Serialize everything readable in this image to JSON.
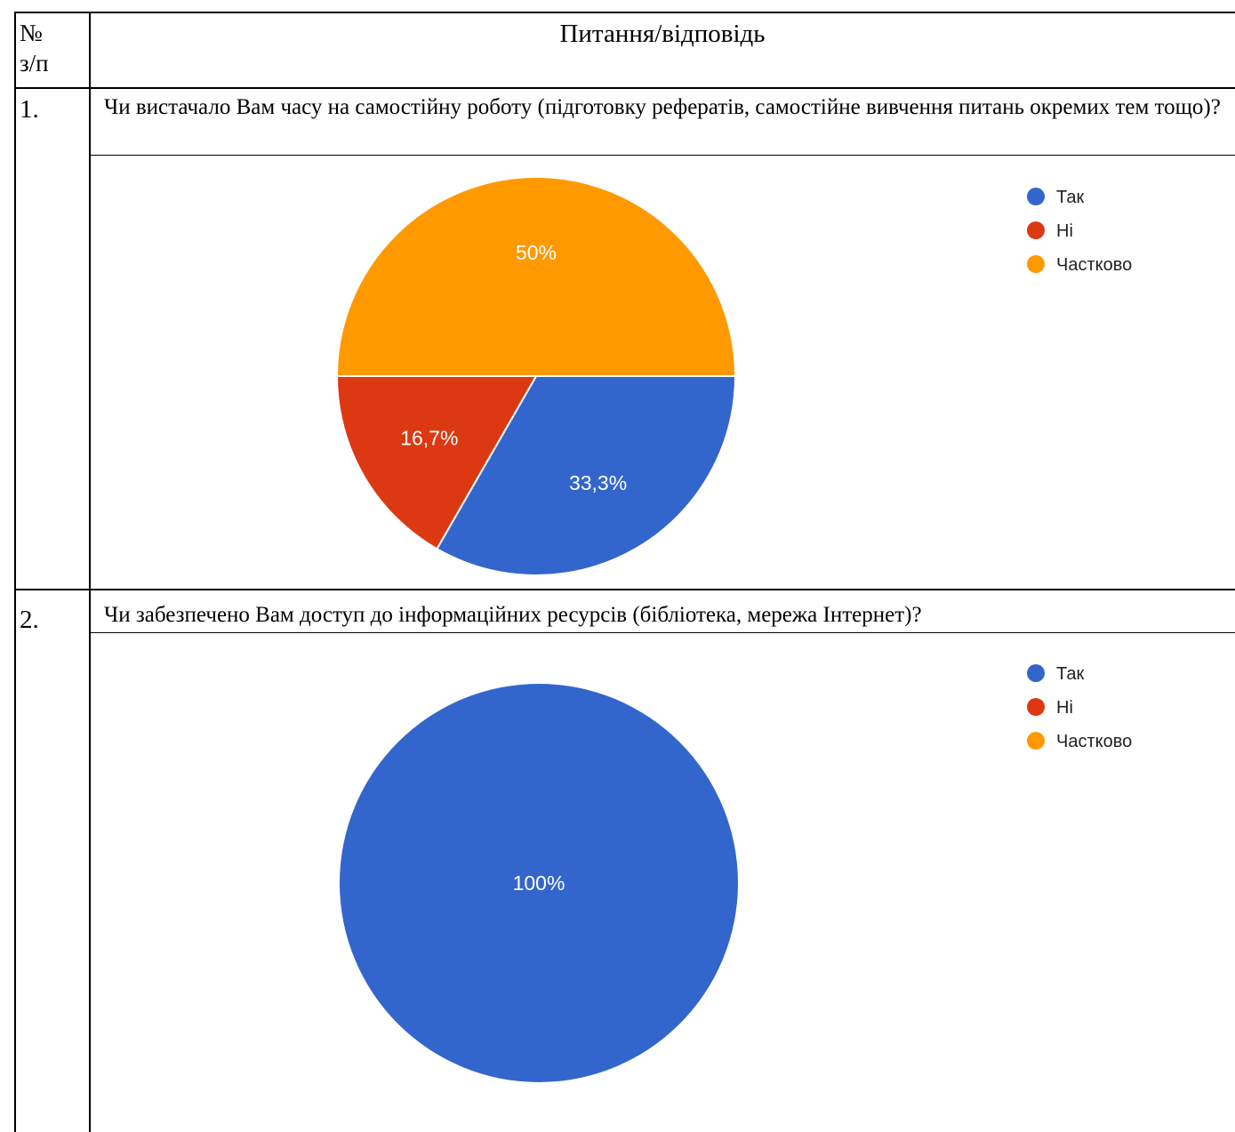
{
  "header": {
    "num_line1": "№",
    "num_line2": "з/п",
    "title": "Питання/відповідь"
  },
  "questions": [
    {
      "number": "1.",
      "text": "Чи вистачало Вам часу на самостійну роботу (підготовку рефератів, самостійне вивчення питань окремих тем тощо)?"
    },
    {
      "number": "2.",
      "text": "Чи забезпечено Вам доступ до інформаційних ресурсів (бібліотека, мережа Інтернет)?"
    }
  ],
  "chart_data": [
    {
      "type": "pie",
      "categories": [
        "Так",
        "Ні",
        "Частково"
      ],
      "values": [
        33.3,
        16.7,
        50
      ],
      "labels": [
        "33,3%",
        "16,7%",
        "50%"
      ],
      "colors": [
        "#3366cc",
        "#dc3912",
        "#ff9900"
      ],
      "legend": "right"
    },
    {
      "type": "pie",
      "categories": [
        "Так",
        "Ні",
        "Частково"
      ],
      "values": [
        100,
        0,
        0
      ],
      "labels": [
        "100%",
        "",
        ""
      ],
      "colors": [
        "#3366cc",
        "#dc3912",
        "#ff9900"
      ],
      "legend": "right"
    }
  ]
}
